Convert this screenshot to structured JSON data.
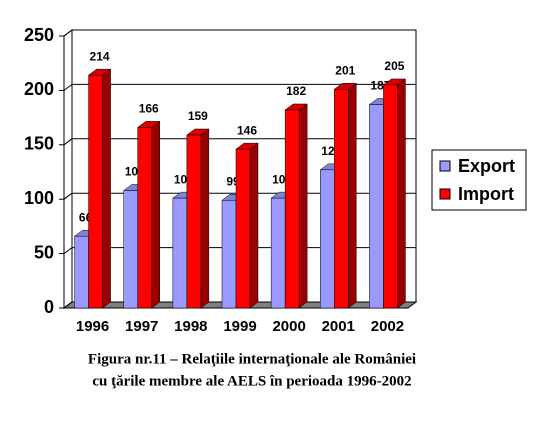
{
  "chart_data": {
    "type": "bar3d",
    "categories": [
      "1996",
      "1997",
      "1998",
      "1999",
      "2000",
      "2001",
      "2002"
    ],
    "series": [
      {
        "name": "Export",
        "color": "#9999ff",
        "values": [
          66,
          108,
          101,
          99,
          101,
          127,
          187
        ]
      },
      {
        "name": "Import",
        "color": "#ff0000",
        "values": [
          214,
          166,
          159,
          146,
          182,
          201,
          205
        ]
      }
    ],
    "ylim": [
      0,
      250
    ],
    "yticks": [
      0,
      50,
      100,
      150,
      200,
      250
    ],
    "grid": true,
    "legend": "right",
    "caption": [
      "Figura nr.11 – Relaţiile internaţionale ale României",
      "cu ţările membre ale AELS în perioada 1996-2002"
    ]
  }
}
